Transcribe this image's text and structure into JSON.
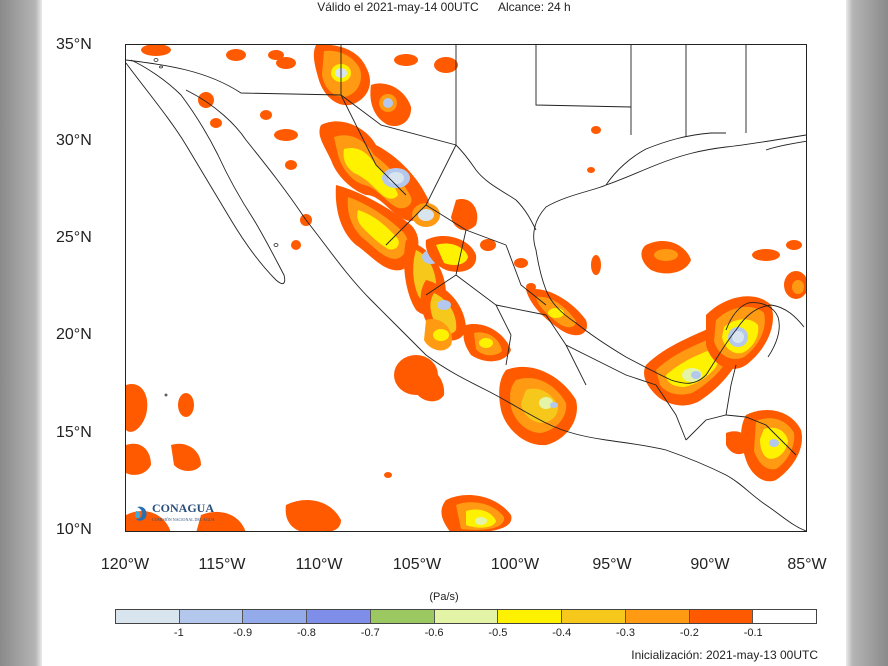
{
  "header": {
    "valid": "Válido el 2021-may-14 00UTC",
    "range": "Alcance: 24 h"
  },
  "map": {
    "lat_labels": [
      "35°N",
      "30°N",
      "25°N",
      "20°N",
      "15°N",
      "10°N"
    ],
    "lon_labels": [
      "120°W",
      "115°W",
      "110°W",
      "105°W",
      "100°W",
      "95°W",
      "90°W",
      "85°W"
    ]
  },
  "logo": {
    "name": "CONAGUA",
    "subtitle": "COMISIÓN NACIONAL DEL AGUA"
  },
  "colorbar": {
    "unit": "(Pa/s)",
    "labels": [
      "-1",
      "-0.9",
      "-0.8",
      "-0.7",
      "-0.6",
      "-0.5",
      "-0.4",
      "-0.3",
      "-0.2",
      "-0.1"
    ],
    "colors": [
      "#d8e4ee",
      "#b4c8ee",
      "#93abeb",
      "#7f8ee8",
      "#9bc860",
      "#e4f4a6",
      "#fff200",
      "#f7c81c",
      "#ff9a12",
      "#ff5a00",
      "#ffffff"
    ]
  },
  "footer": {
    "init": "Inicialización: 2021-may-13 00UTC"
  }
}
